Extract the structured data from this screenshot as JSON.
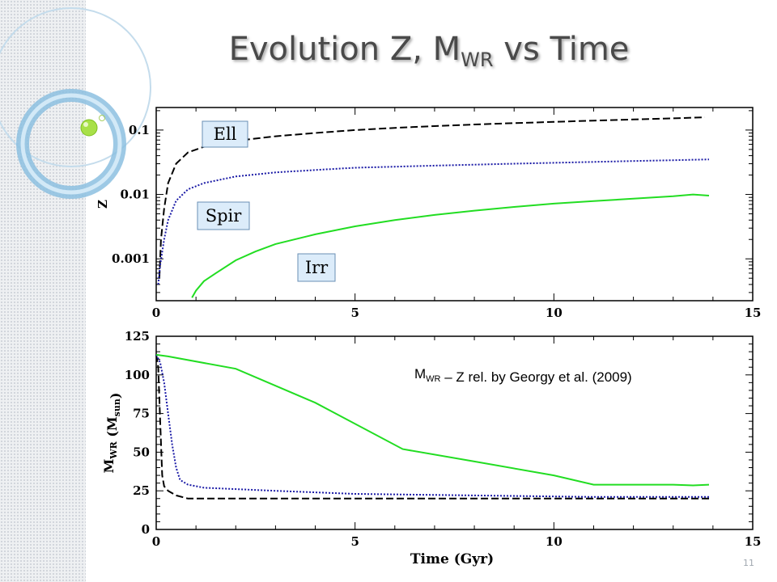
{
  "slide": {
    "title_main": "Evolution Z, M",
    "title_sub": "WR",
    "title_end": " vs Time",
    "page_number": "11"
  },
  "chart_data": [
    {
      "type": "line",
      "ylabel": "Z",
      "yscale": "log",
      "xlim": [
        0,
        15
      ],
      "ylim_log10": [
        -3.65,
        -0.65
      ],
      "x_ticks": [
        "0",
        "5",
        "10",
        "15"
      ],
      "y_ticks": [
        "0.001",
        "0.01",
        "0.1"
      ],
      "y_tick_values": [
        0.001,
        0.01,
        0.1
      ],
      "annotations": [
        "Ell",
        "Spir",
        "Irr"
      ],
      "series": [
        {
          "name": "Ell",
          "style": "dashed",
          "color": "#000000",
          "x": [
            0.08,
            0.12,
            0.2,
            0.3,
            0.5,
            0.8,
            1.2,
            2,
            3,
            4,
            5,
            6,
            7,
            8,
            9,
            10,
            11,
            12,
            13,
            13.8
          ],
          "y": [
            0.0005,
            0.002,
            0.006,
            0.015,
            0.03,
            0.045,
            0.055,
            0.068,
            0.08,
            0.09,
            0.1,
            0.108,
            0.115,
            0.122,
            0.128,
            0.134,
            0.14,
            0.146,
            0.152,
            0.158
          ]
        },
        {
          "name": "Spir",
          "style": "dotted",
          "color": "#1a1aa6",
          "x": [
            0.05,
            0.1,
            0.2,
            0.3,
            0.5,
            0.8,
            1.2,
            2,
            3,
            4,
            5,
            6,
            7,
            8,
            9,
            10,
            11,
            12,
            13,
            13.9
          ],
          "y": [
            0.0004,
            0.0008,
            0.002,
            0.004,
            0.008,
            0.012,
            0.015,
            0.019,
            0.022,
            0.024,
            0.026,
            0.027,
            0.028,
            0.029,
            0.03,
            0.031,
            0.032,
            0.033,
            0.034,
            0.035
          ]
        },
        {
          "name": "Irr",
          "style": "solid",
          "color": "#22dd22",
          "x": [
            0.9,
            1,
            1.2,
            1.5,
            2,
            2.5,
            3,
            4,
            5,
            6,
            7,
            8,
            9,
            10,
            11,
            12,
            13,
            13.5,
            13.9
          ],
          "y": [
            0.00025,
            0.00032,
            0.00045,
            0.0006,
            0.00095,
            0.0013,
            0.0017,
            0.0024,
            0.0032,
            0.004,
            0.0048,
            0.0056,
            0.0064,
            0.0072,
            0.0079,
            0.0086,
            0.0094,
            0.01,
            0.0096
          ]
        }
      ]
    },
    {
      "type": "line",
      "xlabel": "Time  (Gyr)",
      "ylabel_main": "M",
      "ylabel_sub": "WR",
      "ylabel_unit_main": "(M",
      "ylabel_unit_sub": "sun",
      "ylabel_unit_end": ")",
      "xlim": [
        0,
        15
      ],
      "ylim": [
        0,
        125
      ],
      "x_ticks": [
        "0",
        "5",
        "10",
        "15"
      ],
      "y_ticks": [
        "0",
        "25",
        "50",
        "75",
        "100",
        "125"
      ],
      "annotation_main": "M",
      "annotation_sub": "WR",
      "annotation_end": " – Z rel. by  Georgy et al. (2009)",
      "series": [
        {
          "name": "Ell",
          "style": "dashed",
          "color": "#000000",
          "x": [
            0,
            0.05,
            0.1,
            0.15,
            0.2,
            0.3,
            0.5,
            0.8,
            1.5,
            5,
            10,
            13.9
          ],
          "y": [
            113,
            105,
            70,
            35,
            28,
            25,
            22,
            20,
            20,
            20,
            20,
            20
          ]
        },
        {
          "name": "Spir",
          "style": "dotted",
          "color": "#1a1aa6",
          "x": [
            0,
            0.1,
            0.2,
            0.3,
            0.4,
            0.5,
            0.6,
            0.8,
            1.2,
            3,
            5,
            8,
            11,
            13.9
          ],
          "y": [
            113,
            108,
            95,
            75,
            55,
            40,
            32,
            29,
            27,
            25,
            23,
            22,
            21,
            21
          ]
        },
        {
          "name": "Irr",
          "style": "solid",
          "color": "#22dd22",
          "x": [
            0,
            0.3,
            2,
            4,
            6.2,
            8,
            10,
            11,
            12,
            13,
            13.5,
            13.9
          ],
          "y": [
            113,
            112,
            104,
            82,
            52,
            44,
            35,
            29,
            29,
            29,
            28.5,
            29
          ]
        }
      ]
    }
  ]
}
